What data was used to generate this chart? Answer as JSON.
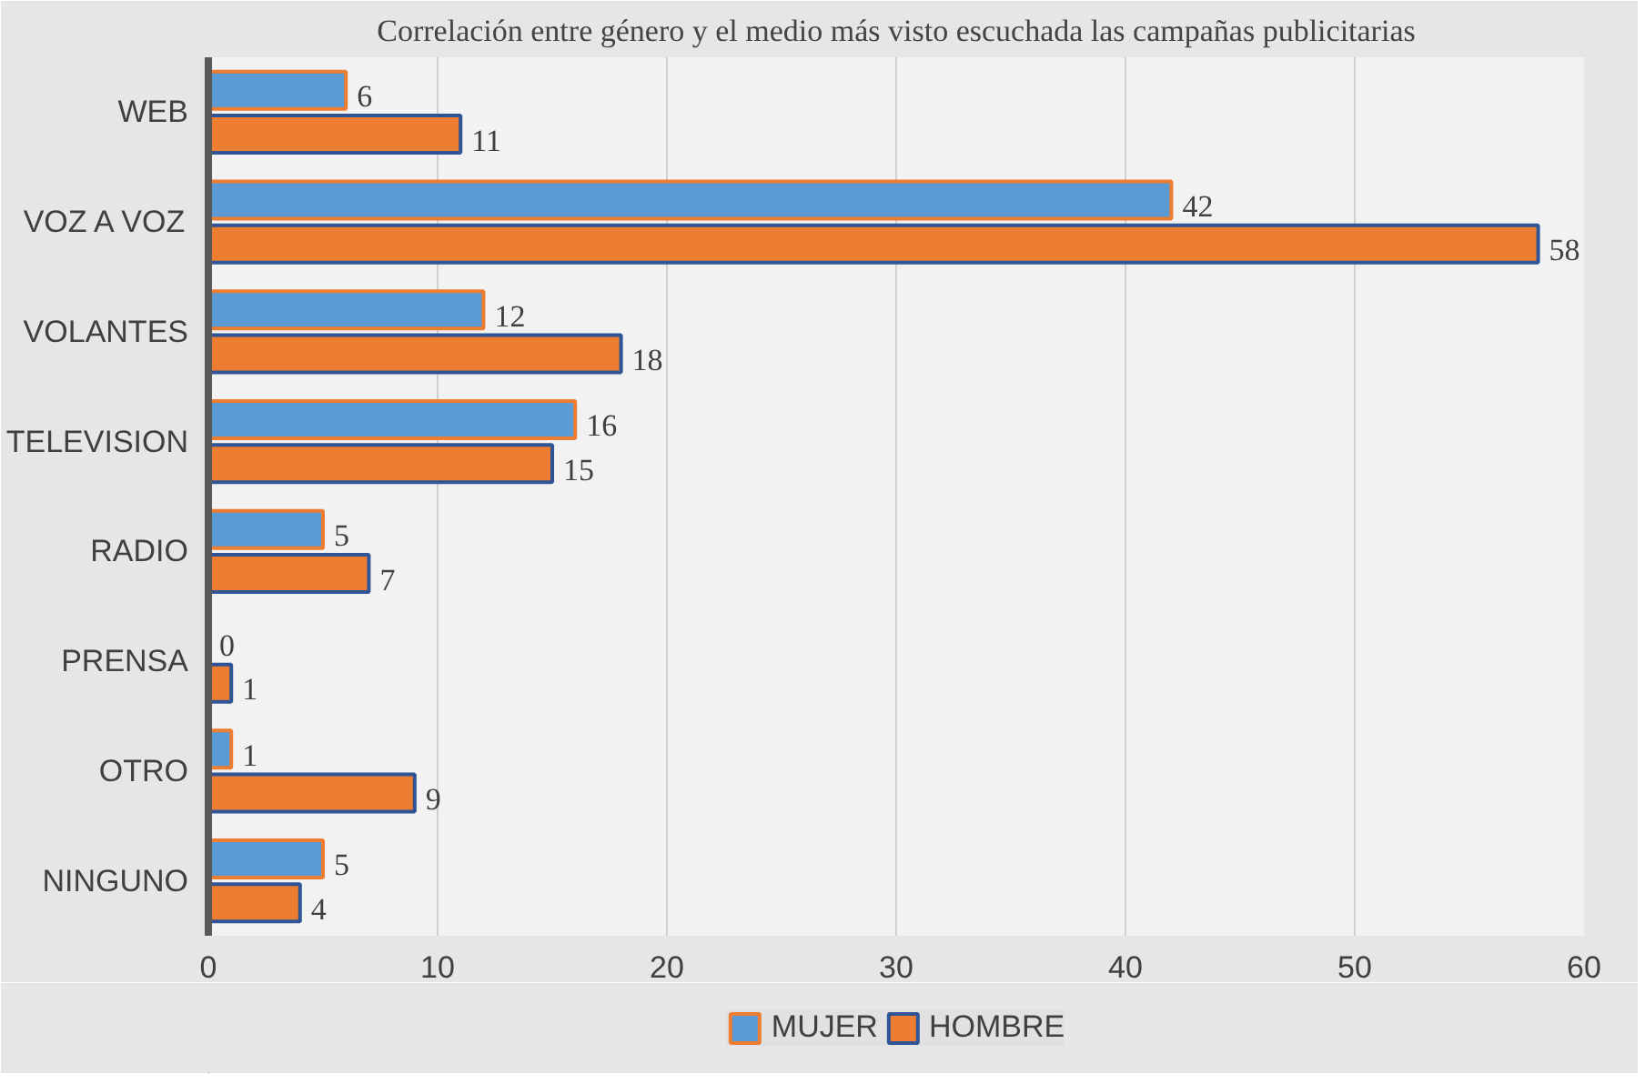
{
  "chart_data": {
    "type": "bar",
    "orientation": "horizontal",
    "title": "Correlación entre género y el medio más visto escuchada las campañas publicitarias",
    "categories": [
      "WEB",
      "VOZ A VOZ",
      "VOLANTES",
      "TELEVISION",
      "RADIO",
      "PRENSA",
      "OTRO",
      "NINGUNO"
    ],
    "series": [
      {
        "name": "MUJER",
        "color": "#5b9bd5",
        "values": [
          6,
          42,
          12,
          16,
          5,
          0,
          1,
          5
        ]
      },
      {
        "name": "HOMBRE",
        "color": "#ed7d31",
        "values": [
          11,
          58,
          18,
          15,
          7,
          1,
          9,
          4
        ]
      }
    ],
    "xlim": [
      0,
      60
    ],
    "xticks": [
      0,
      10,
      20,
      30,
      40,
      50,
      60
    ],
    "grid": "x",
    "legend": "bottom",
    "data_labels": true
  }
}
